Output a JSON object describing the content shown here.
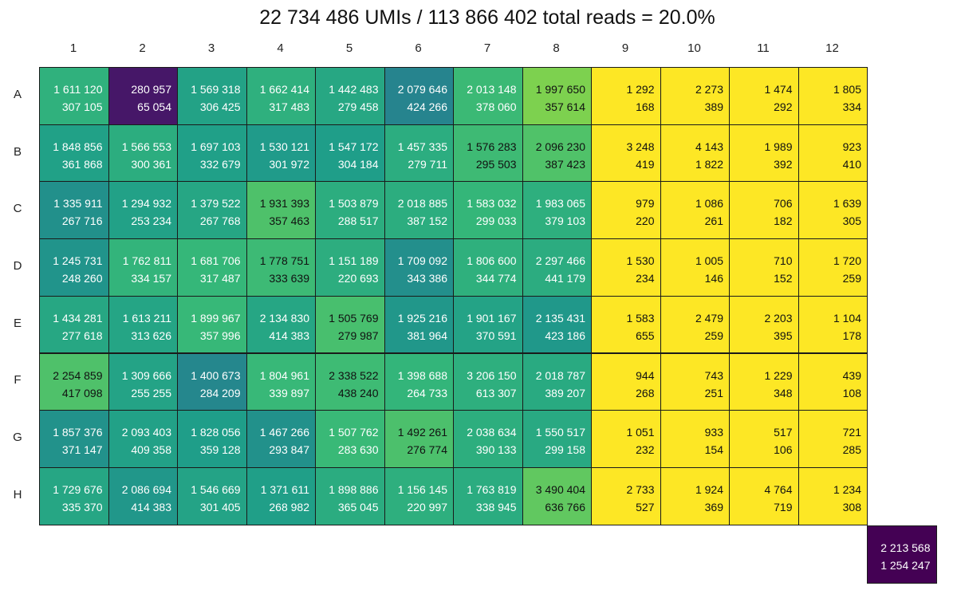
{
  "title": "22 734 486 UMIs / 113 866 402 total reads = 20.0%",
  "chart_data": {
    "type": "heatmap",
    "title": "22 734 486 UMIs / 113 866 402 total reads = 20.0%",
    "columns": [
      "1",
      "2",
      "3",
      "4",
      "5",
      "6",
      "7",
      "8",
      "9",
      "10",
      "11",
      "12"
    ],
    "rows": [
      "A",
      "B",
      "C",
      "D",
      "E",
      "F",
      "G",
      "H"
    ],
    "colormap": "viridis (reversed: high values dark purple, low values yellow)",
    "color_metric": "UMIs / reads fraction",
    "cells": [
      [
        [
          "1 611 120",
          "307 105"
        ],
        [
          "280 957",
          "65 054"
        ],
        [
          "1 569 318",
          "306 425"
        ],
        [
          "1 662 414",
          "317 483"
        ],
        [
          "1 442 483",
          "279 458"
        ],
        [
          "2 079 646",
          "424 266"
        ],
        [
          "2 013 148",
          "378 060"
        ],
        [
          "1 997 650",
          "357 614"
        ],
        [
          "1 292",
          "168"
        ],
        [
          "2 273",
          "389"
        ],
        [
          "1 474",
          "292"
        ],
        [
          "1 805",
          "334"
        ]
      ],
      [
        [
          "1 848 856",
          "361 868"
        ],
        [
          "1 566 553",
          "300 361"
        ],
        [
          "1 697 103",
          "332 679"
        ],
        [
          "1 530 121",
          "301 972"
        ],
        [
          "1 547 172",
          "304 184"
        ],
        [
          "1 457 335",
          "279 711"
        ],
        [
          "1 576 283",
          "295 503"
        ],
        [
          "2 096 230",
          "387 423"
        ],
        [
          "3 248",
          "419"
        ],
        [
          "4 143",
          "1 822"
        ],
        [
          "1 989",
          "392"
        ],
        [
          "923",
          "410"
        ]
      ],
      [
        [
          "1 335 911",
          "267 716"
        ],
        [
          "1 294 932",
          "253 234"
        ],
        [
          "1 379 522",
          "267 768"
        ],
        [
          "1 931 393",
          "357 463"
        ],
        [
          "1 503 879",
          "288 517"
        ],
        [
          "2 018 885",
          "387 152"
        ],
        [
          "1 583 032",
          "299 033"
        ],
        [
          "1 983 065",
          "379 103"
        ],
        [
          "979",
          "220"
        ],
        [
          "1 086",
          "261"
        ],
        [
          "706",
          "182"
        ],
        [
          "1 639",
          "305"
        ]
      ],
      [
        [
          "1 245 731",
          "248 260"
        ],
        [
          "1 762 811",
          "334 157"
        ],
        [
          "1 681 706",
          "317 487"
        ],
        [
          "1 778 751",
          "333 639"
        ],
        [
          "1 151 189",
          "220 693"
        ],
        [
          "1 709 092",
          "343 386"
        ],
        [
          "1 806 600",
          "344 774"
        ],
        [
          "2 297 466",
          "441 179"
        ],
        [
          "1 530",
          "234"
        ],
        [
          "1 005",
          "146"
        ],
        [
          "710",
          "152"
        ],
        [
          "1 720",
          "259"
        ]
      ],
      [
        [
          "1 434 281",
          "277 618"
        ],
        [
          "1 613 211",
          "313 626"
        ],
        [
          "1 899 967",
          "357 996"
        ],
        [
          "2 134 830",
          "414 383"
        ],
        [
          "1 505 769",
          "279 987"
        ],
        [
          "1 925 216",
          "381 964"
        ],
        [
          "1 901 167",
          "370 591"
        ],
        [
          "2 135 431",
          "423 186"
        ],
        [
          "1 583",
          "655"
        ],
        [
          "2 479",
          "259"
        ],
        [
          "2 203",
          "395"
        ],
        [
          "1 104",
          "178"
        ]
      ],
      [
        [
          "2 254 859",
          "417 098"
        ],
        [
          "1 309 666",
          "255 255"
        ],
        [
          "1 400 673",
          "284 209"
        ],
        [
          "1 804 961",
          "339 897"
        ],
        [
          "2 338 522",
          "438 240"
        ],
        [
          "1 398 688",
          "264 733"
        ],
        [
          "3 206 150",
          "613 307"
        ],
        [
          "2 018 787",
          "389 207"
        ],
        [
          "944",
          "268"
        ],
        [
          "743",
          "251"
        ],
        [
          "1 229",
          "348"
        ],
        [
          "439",
          "108"
        ]
      ],
      [
        [
          "1 857 376",
          "371 147"
        ],
        [
          "2 093 403",
          "409 358"
        ],
        [
          "1 828 056",
          "359 128"
        ],
        [
          "1 467 266",
          "293 847"
        ],
        [
          "1 507 762",
          "283 630"
        ],
        [
          "1 492 261",
          "276 774"
        ],
        [
          "2 038 634",
          "390 133"
        ],
        [
          "1 550 517",
          "299 158"
        ],
        [
          "1 051",
          "232"
        ],
        [
          "933",
          "154"
        ],
        [
          "517",
          "106"
        ],
        [
          "721",
          "285"
        ]
      ],
      [
        [
          "1 729 676",
          "335 370"
        ],
        [
          "2 086 694",
          "414 383"
        ],
        [
          "1 546 669",
          "301 405"
        ],
        [
          "1 371 611",
          "268 982"
        ],
        [
          "1 898 886",
          "365 045"
        ],
        [
          "1 156 145",
          "220 997"
        ],
        [
          "1 763 819",
          "338 945"
        ],
        [
          "3 490 404",
          "636 766"
        ],
        [
          "2 733",
          "527"
        ],
        [
          "1 924",
          "369"
        ],
        [
          "4 764",
          "719"
        ],
        [
          "1 234",
          "308"
        ]
      ]
    ],
    "extra_cell": [
      "2 213 568",
      "1 254 247"
    ]
  }
}
